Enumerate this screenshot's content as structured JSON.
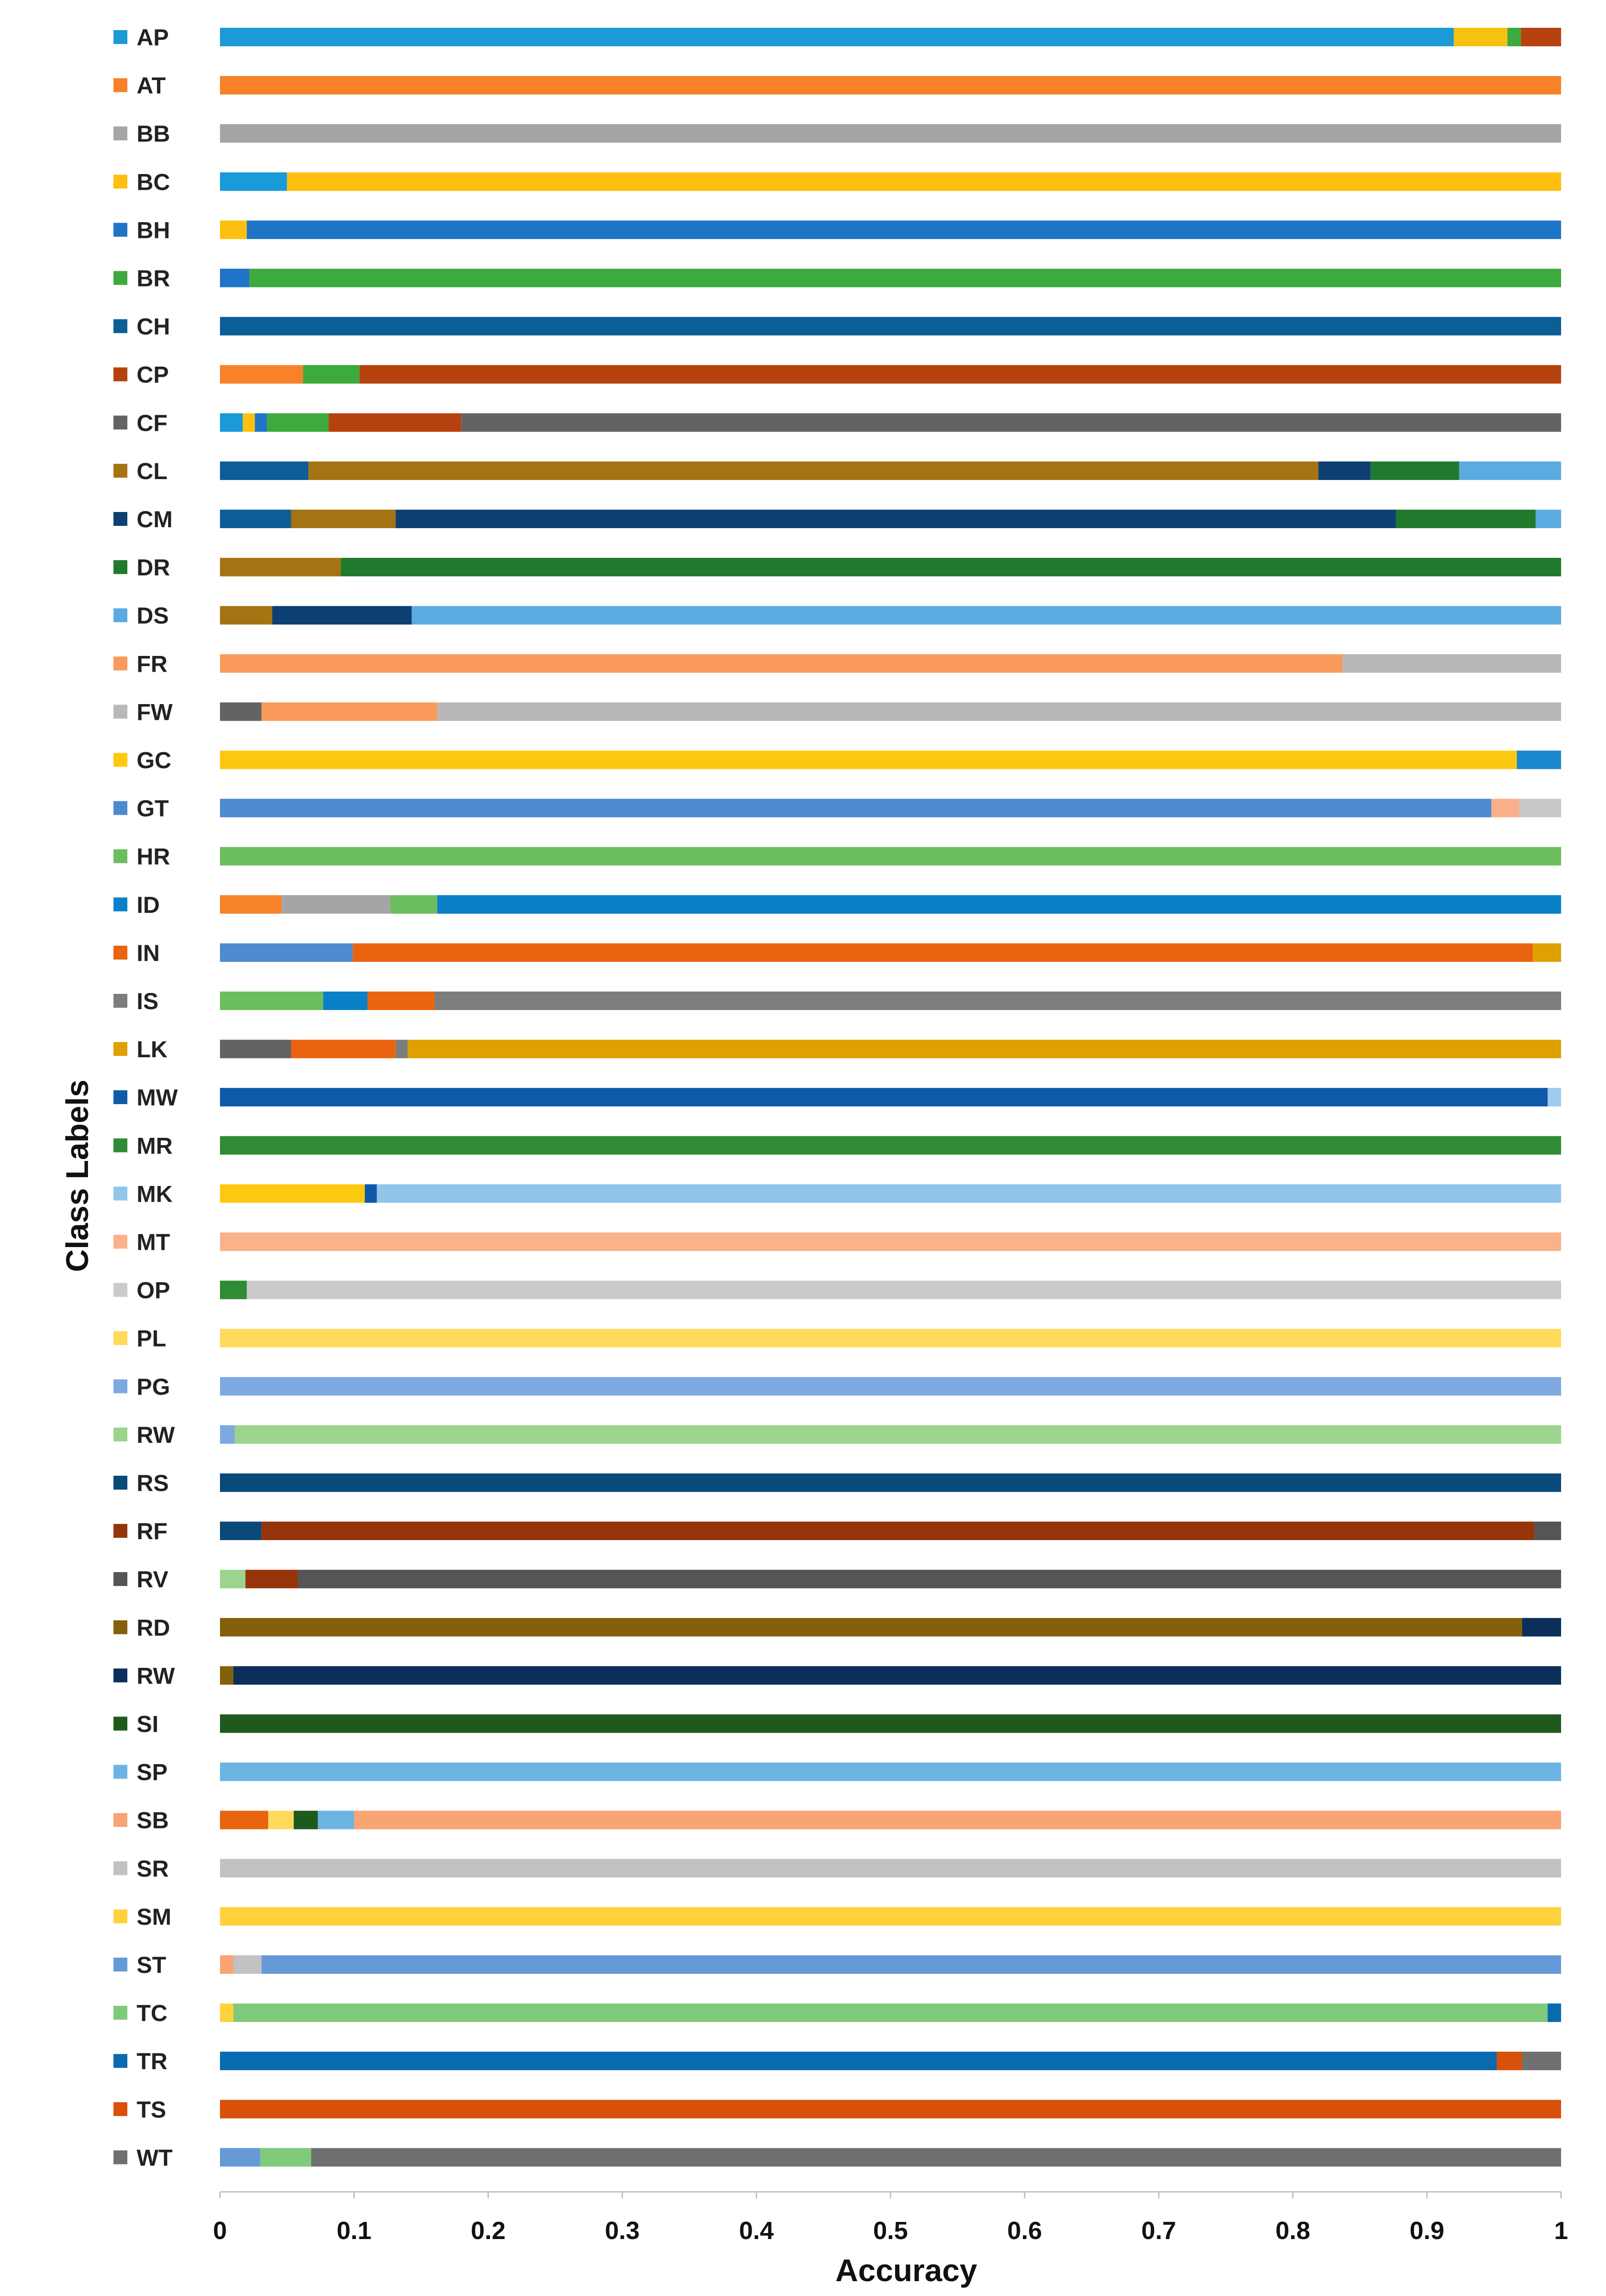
{
  "chart_data": {
    "type": "bar",
    "orientation": "horizontal",
    "stacked": true,
    "xlabel": "Accuracy",
    "ylabel": "Class Labels",
    "xlim": [
      0,
      1
    ],
    "xticks": [
      "0",
      "0.1",
      "0.2",
      "0.3",
      "0.4",
      "0.5",
      "0.6",
      "0.7",
      "0.8",
      "0.9",
      "1"
    ],
    "legend": "left",
    "grid": false,
    "rows": [
      {
        "label": "AP",
        "color": "#1a9ad6",
        "segments": [
          {
            "v": 0.92,
            "c": "#1a9ad6"
          },
          {
            "v": 0.04,
            "c": "#f5c211"
          },
          {
            "v": 0.01,
            "c": "#3daa3d"
          },
          {
            "v": 0.03,
            "c": "#b5420f"
          }
        ]
      },
      {
        "label": "AT",
        "color": "#f7822a",
        "segments": [
          {
            "v": 1.0,
            "c": "#f7822a"
          }
        ]
      },
      {
        "label": "BB",
        "color": "#a5a5a5",
        "segments": [
          {
            "v": 1.0,
            "c": "#a5a5a5"
          }
        ]
      },
      {
        "label": "BC",
        "color": "#fdc010",
        "segments": [
          {
            "v": 0.05,
            "c": "#1a9ad6"
          },
          {
            "v": 0.95,
            "c": "#fdc010"
          }
        ]
      },
      {
        "label": "BH",
        "color": "#1e74c6",
        "segments": [
          {
            "v": 0.02,
            "c": "#fdc010"
          },
          {
            "v": 0.98,
            "c": "#1e74c6"
          }
        ]
      },
      {
        "label": "BR",
        "color": "#3daa3d",
        "segments": [
          {
            "v": 0.022,
            "c": "#1e74c6"
          },
          {
            "v": 0.978,
            "c": "#3daa3d"
          }
        ]
      },
      {
        "label": "CH",
        "color": "#0b5e96",
        "segments": [
          {
            "v": 1.0,
            "c": "#0b5e96"
          }
        ]
      },
      {
        "label": "CP",
        "color": "#b5420f",
        "segments": [
          {
            "v": 0.062,
            "c": "#f7822a"
          },
          {
            "v": 0.042,
            "c": "#3daa3d"
          },
          {
            "v": 0.896,
            "c": "#b5420f"
          }
        ]
      },
      {
        "label": "CF",
        "color": "#636363",
        "segments": [
          {
            "v": 0.017,
            "c": "#1a9ad6"
          },
          {
            "v": 0.009,
            "c": "#fdc010"
          },
          {
            "v": 0.009,
            "c": "#1e74c6"
          },
          {
            "v": 0.046,
            "c": "#3daa3d"
          },
          {
            "v": 0.099,
            "c": "#b5420f"
          },
          {
            "v": 0.82,
            "c": "#636363"
          }
        ]
      },
      {
        "label": "CL",
        "color": "#a57412",
        "segments": [
          {
            "v": 0.066,
            "c": "#0b5e96"
          },
          {
            "v": 0.753,
            "c": "#a57412"
          },
          {
            "v": 0.039,
            "c": "#0e3f73"
          },
          {
            "v": 0.066,
            "c": "#1f7a2e"
          },
          {
            "v": 0.076,
            "c": "#5aace0"
          }
        ]
      },
      {
        "label": "CM",
        "color": "#0e3f73",
        "segments": [
          {
            "v": 0.053,
            "c": "#0b5e96"
          },
          {
            "v": 0.078,
            "c": "#a57412"
          },
          {
            "v": 0.746,
            "c": "#0e3f73"
          },
          {
            "v": 0.104,
            "c": "#1f7a2e"
          },
          {
            "v": 0.019,
            "c": "#5aace0"
          }
        ]
      },
      {
        "label": "DR",
        "color": "#1f7a2e",
        "segments": [
          {
            "v": 0.09,
            "c": "#a57412"
          },
          {
            "v": 0.91,
            "c": "#1f7a2e"
          }
        ]
      },
      {
        "label": "DS",
        "color": "#5aace0",
        "segments": [
          {
            "v": 0.039,
            "c": "#a57412"
          },
          {
            "v": 0.104,
            "c": "#0e3f73"
          },
          {
            "v": 0.857,
            "c": "#5aace0"
          }
        ]
      },
      {
        "label": "FR",
        "color": "#f99a5a",
        "segments": [
          {
            "v": 0.837,
            "c": "#f99a5a"
          },
          {
            "v": 0.163,
            "c": "#b8b8b8"
          }
        ]
      },
      {
        "label": "FW",
        "color": "#b8b8b8",
        "segments": [
          {
            "v": 0.031,
            "c": "#636363"
          },
          {
            "v": 0.131,
            "c": "#f99a5a"
          },
          {
            "v": 0.838,
            "c": "#b8b8b8"
          }
        ]
      },
      {
        "label": "GC",
        "color": "#fdc810",
        "segments": [
          {
            "v": 0.967,
            "c": "#fdc810"
          },
          {
            "v": 0.033,
            "c": "#1a88cc"
          }
        ]
      },
      {
        "label": "GT",
        "color": "#4e8ad0",
        "segments": [
          {
            "v": 0.948,
            "c": "#4e8ad0"
          },
          {
            "v": 0.021,
            "c": "#f9b08a"
          },
          {
            "v": 0.031,
            "c": "#c8c8c8"
          }
        ]
      },
      {
        "label": "HR",
        "color": "#6cbd5e",
        "segments": [
          {
            "v": 1.0,
            "c": "#6cbd5e"
          }
        ]
      },
      {
        "label": "ID",
        "color": "#0a80c8",
        "segments": [
          {
            "v": 0.046,
            "c": "#f7822a"
          },
          {
            "v": 0.081,
            "c": "#a5a5a5"
          },
          {
            "v": 0.035,
            "c": "#6cbd5e"
          },
          {
            "v": 0.838,
            "c": "#0a80c8"
          }
        ]
      },
      {
        "label": "IN",
        "color": "#ea6410",
        "segments": [
          {
            "v": 0.099,
            "c": "#4e8ad0"
          },
          {
            "v": 0.88,
            "c": "#ea6410"
          },
          {
            "v": 0.021,
            "c": "#e0a000"
          }
        ]
      },
      {
        "label": "IS",
        "color": "#7d7d7d",
        "segments": [
          {
            "v": 0.077,
            "c": "#6cbd5e"
          },
          {
            "v": 0.033,
            "c": "#0a80c8"
          },
          {
            "v": 0.05,
            "c": "#ea6410"
          },
          {
            "v": 0.84,
            "c": "#7d7d7d"
          }
        ]
      },
      {
        "label": "LK",
        "color": "#e0a000",
        "segments": [
          {
            "v": 0.053,
            "c": "#636363"
          },
          {
            "v": 0.078,
            "c": "#ea6410"
          },
          {
            "v": 0.009,
            "c": "#7d7d7d"
          },
          {
            "v": 0.86,
            "c": "#e0a000"
          }
        ]
      },
      {
        "label": "MW",
        "color": "#0e5aa8",
        "segments": [
          {
            "v": 0.99,
            "c": "#0e5aa8"
          },
          {
            "v": 0.01,
            "c": "#9ecbee"
          }
        ]
      },
      {
        "label": "MR",
        "color": "#2f8b34",
        "segments": [
          {
            "v": 1.0,
            "c": "#2f8b34"
          }
        ]
      },
      {
        "label": "MK",
        "color": "#8fc6ea",
        "segments": [
          {
            "v": 0.108,
            "c": "#fdc810"
          },
          {
            "v": 0.009,
            "c": "#0e5aa8"
          },
          {
            "v": 0.883,
            "c": "#8fc6ea"
          }
        ]
      },
      {
        "label": "MT",
        "color": "#f9b28a",
        "segments": [
          {
            "v": 1.0,
            "c": "#f9b28a"
          }
        ]
      },
      {
        "label": "OP",
        "color": "#cacaca",
        "segments": [
          {
            "v": 0.02,
            "c": "#2f8b34"
          },
          {
            "v": 0.98,
            "c": "#cacaca"
          }
        ]
      },
      {
        "label": "PL",
        "color": "#ffda5c",
        "segments": [
          {
            "v": 1.0,
            "c": "#ffda5c"
          }
        ]
      },
      {
        "label": "PG",
        "color": "#7ea9e0",
        "segments": [
          {
            "v": 1.0,
            "c": "#7ea9e0"
          }
        ]
      },
      {
        "label": "RW",
        "color": "#9bd48c",
        "segments": [
          {
            "v": 0.011,
            "c": "#7ea9e0"
          },
          {
            "v": 0.989,
            "c": "#9bd48c"
          }
        ]
      },
      {
        "label": "RS",
        "color": "#0a4a78",
        "segments": [
          {
            "v": 1.0,
            "c": "#0a4a78"
          }
        ]
      },
      {
        "label": "RF",
        "color": "#96340a",
        "segments": [
          {
            "v": 0.031,
            "c": "#0a4a78"
          },
          {
            "v": 0.949,
            "c": "#96340a"
          },
          {
            "v": 0.02,
            "c": "#555555"
          }
        ]
      },
      {
        "label": "RV",
        "color": "#555555",
        "segments": [
          {
            "v": 0.019,
            "c": "#9bd48c"
          },
          {
            "v": 0.039,
            "c": "#96340a"
          },
          {
            "v": 0.942,
            "c": "#555555"
          }
        ]
      },
      {
        "label": "RD",
        "color": "#85600a",
        "segments": [
          {
            "v": 0.971,
            "c": "#85600a"
          },
          {
            "v": 0.029,
            "c": "#0b2f5a"
          }
        ]
      },
      {
        "label": "RW",
        "color": "#0b2f5a",
        "segments": [
          {
            "v": 0.01,
            "c": "#85600a"
          },
          {
            "v": 0.99,
            "c": "#0b2f5a"
          }
        ]
      },
      {
        "label": "SI",
        "color": "#1e5a1e",
        "segments": [
          {
            "v": 1.0,
            "c": "#1e5a1e"
          }
        ]
      },
      {
        "label": "SP",
        "color": "#6cb4e4",
        "segments": [
          {
            "v": 1.0,
            "c": "#6cb4e4"
          }
        ]
      },
      {
        "label": "SB",
        "color": "#f9a474",
        "segments": [
          {
            "v": 0.036,
            "c": "#ea6410"
          },
          {
            "v": 0.019,
            "c": "#ffda5c"
          },
          {
            "v": 0.018,
            "c": "#1e5a1e"
          },
          {
            "v": 0.027,
            "c": "#6cb4e4"
          },
          {
            "v": 0.9,
            "c": "#f9a474"
          }
        ]
      },
      {
        "label": "SR",
        "color": "#c2c2c2",
        "segments": [
          {
            "v": 1.0,
            "c": "#c2c2c2"
          }
        ]
      },
      {
        "label": "SM",
        "color": "#ffd23c",
        "segments": [
          {
            "v": 1.0,
            "c": "#ffd23c"
          }
        ]
      },
      {
        "label": "ST",
        "color": "#6699d8",
        "segments": [
          {
            "v": 0.01,
            "c": "#f9a474"
          },
          {
            "v": 0.021,
            "c": "#c2c2c2"
          },
          {
            "v": 0.969,
            "c": "#6699d8"
          }
        ]
      },
      {
        "label": "TC",
        "color": "#7fc97a",
        "segments": [
          {
            "v": 0.01,
            "c": "#ffd23c"
          },
          {
            "v": 0.98,
            "c": "#7fc97a"
          },
          {
            "v": 0.01,
            "c": "#0a6ab0"
          }
        ]
      },
      {
        "label": "TR",
        "color": "#0a6ab0",
        "segments": [
          {
            "v": 0.952,
            "c": "#0a6ab0"
          },
          {
            "v": 0.019,
            "c": "#d9500a"
          },
          {
            "v": 0.029,
            "c": "#707070"
          }
        ]
      },
      {
        "label": "TS",
        "color": "#d9500a",
        "segments": [
          {
            "v": 1.0,
            "c": "#d9500a"
          }
        ]
      },
      {
        "label": "WT",
        "color": "#707070",
        "segments": [
          {
            "v": 0.03,
            "c": "#6699d8"
          },
          {
            "v": 0.038,
            "c": "#7fc97a"
          },
          {
            "v": 0.932,
            "c": "#707070"
          }
        ]
      }
    ]
  }
}
